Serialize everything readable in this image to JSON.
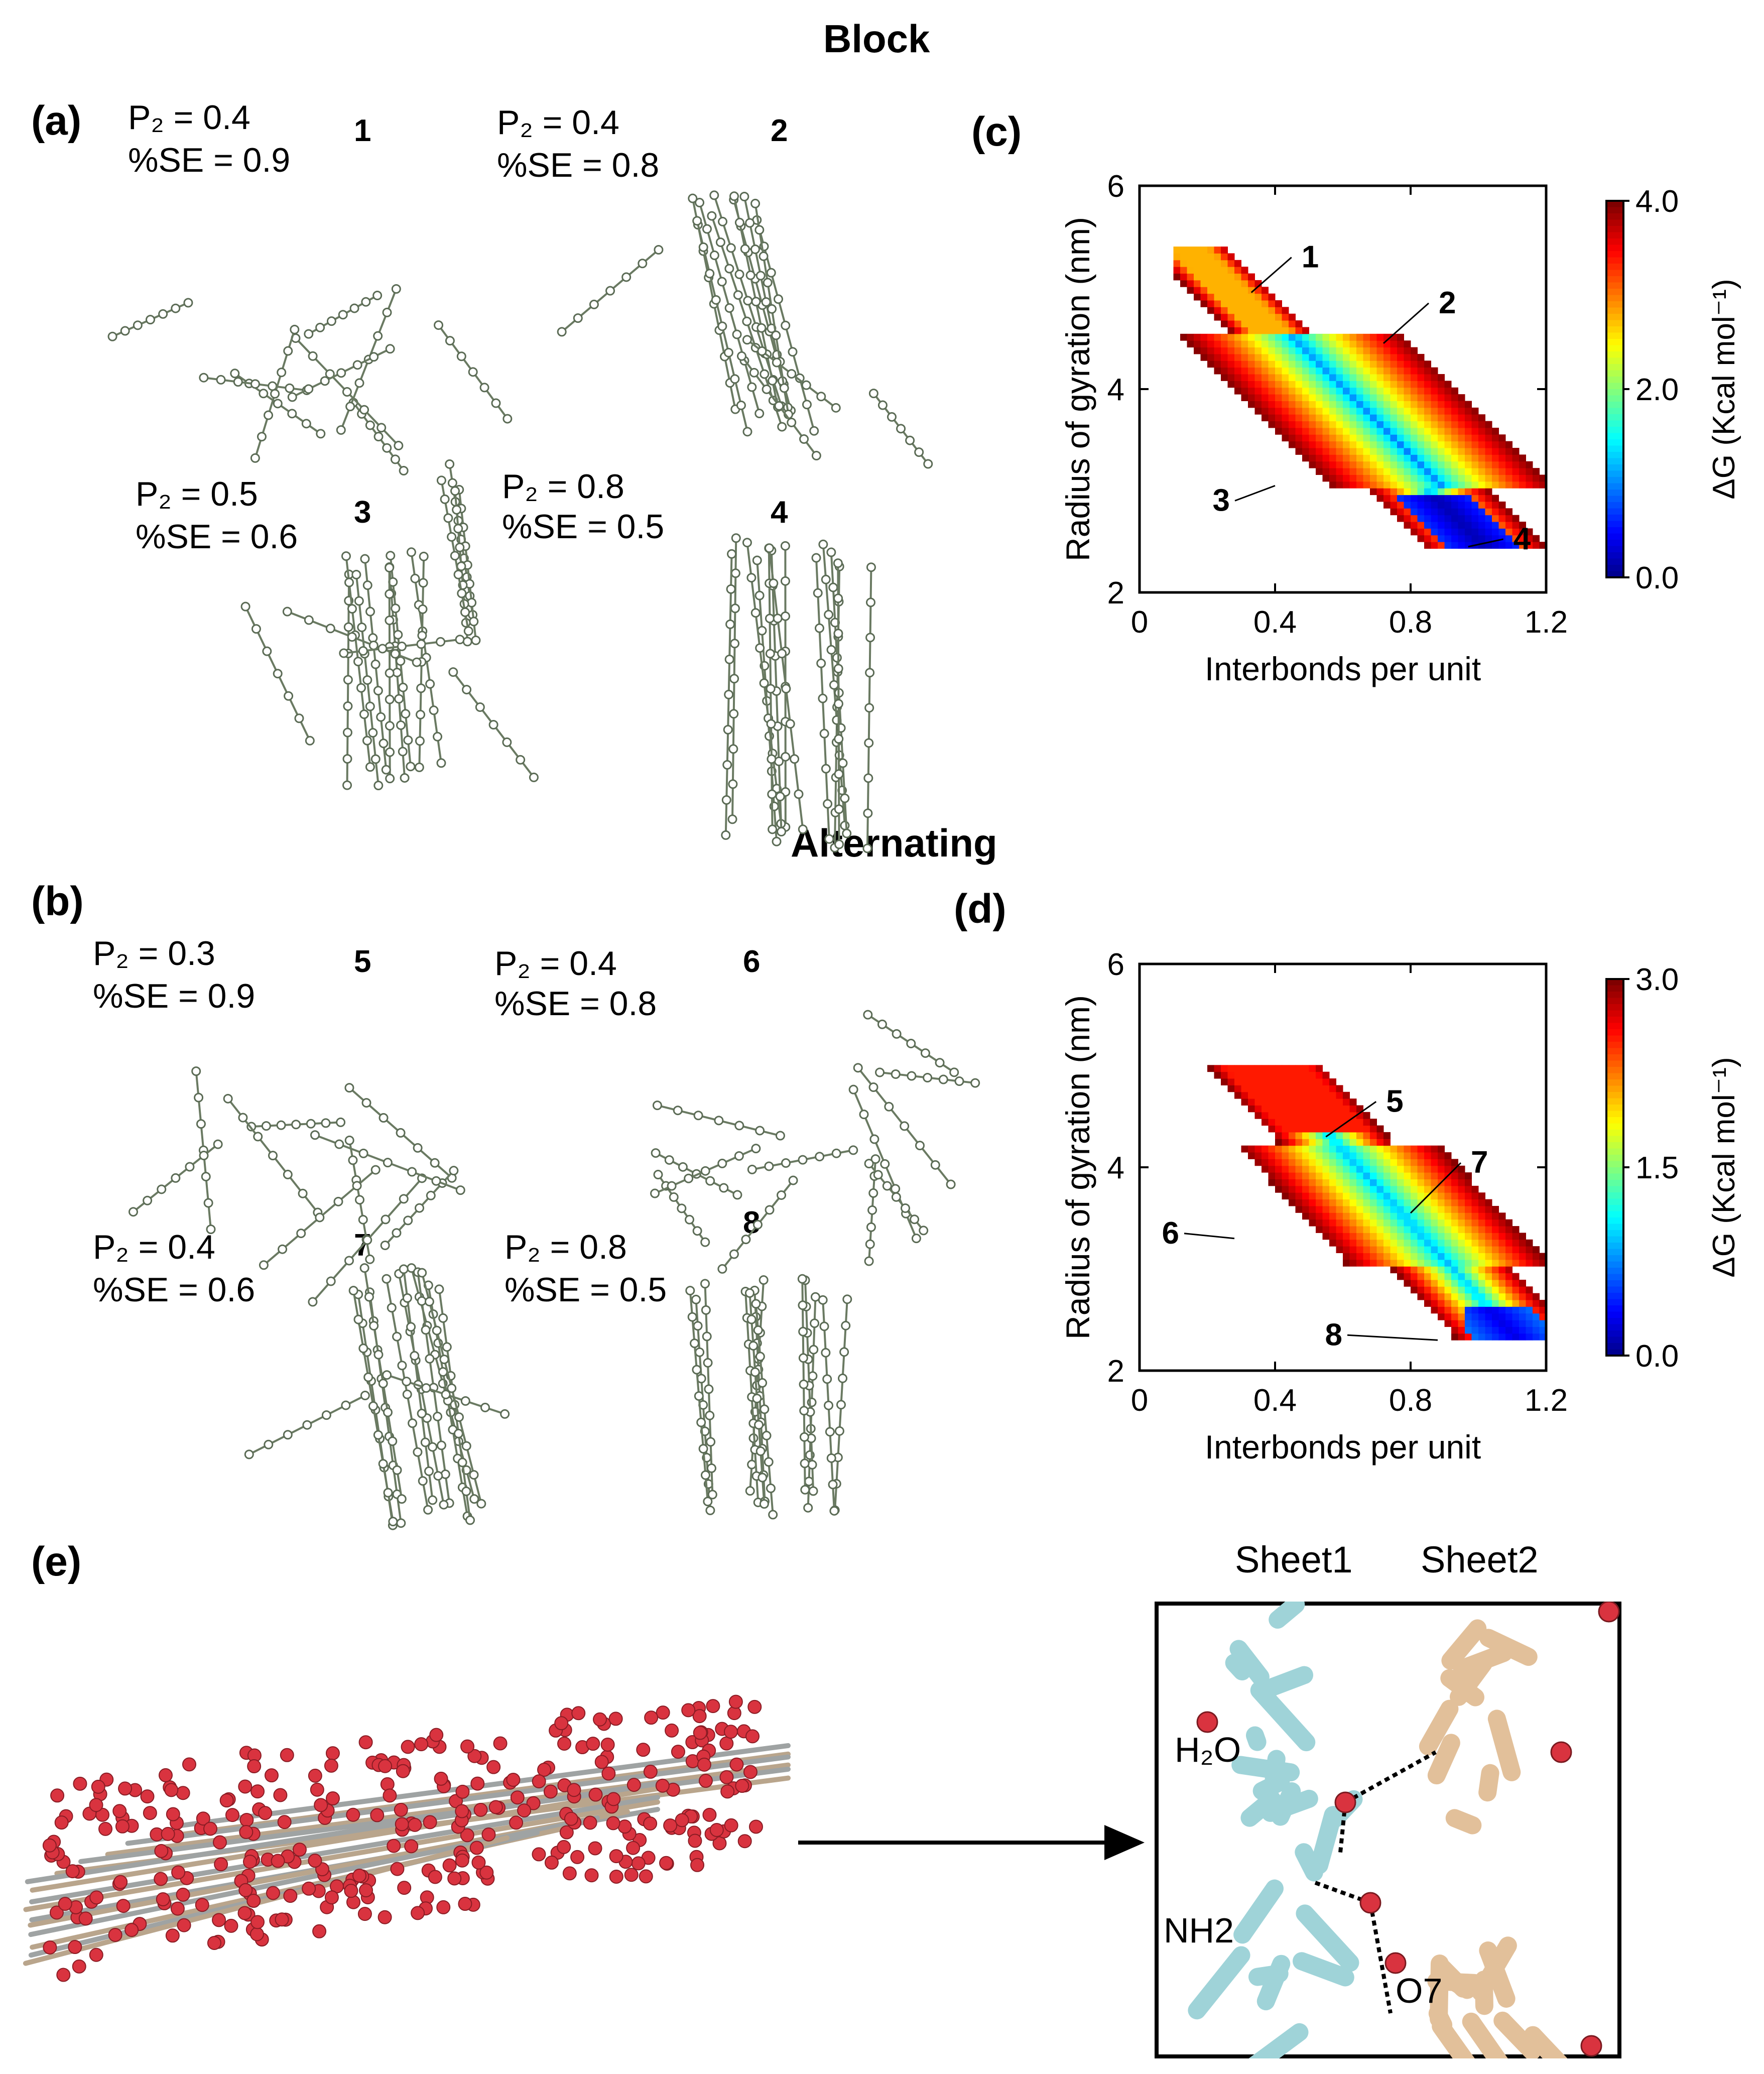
{
  "titles": {
    "block": "Block",
    "alternating": "Alternating"
  },
  "panel_labels": {
    "a": "(a)",
    "b": "(b)",
    "c": "(c)",
    "d": "(d)",
    "e": "(e)"
  },
  "snapshots": [
    {
      "id": "1",
      "p2": "P₂ = 0.4",
      "se": "%SE = 0.9"
    },
    {
      "id": "2",
      "p2": "P₂ = 0.4",
      "se": "%SE = 0.8"
    },
    {
      "id": "3",
      "p2": "P₂ = 0.5",
      "se": "%SE = 0.6"
    },
    {
      "id": "4",
      "p2": "P₂ = 0.8",
      "se": "%SE = 0.5"
    },
    {
      "id": "5",
      "p2": "P₂ = 0.3",
      "se": "%SE = 0.9"
    },
    {
      "id": "6",
      "p2": "P₂ = 0.4",
      "se": "%SE = 0.8"
    },
    {
      "id": "7",
      "p2": "P₂ = 0.4",
      "se": "%SE = 0.6"
    },
    {
      "id": "8",
      "p2": "P₂ = 0.8",
      "se": "%SE = 0.5"
    }
  ],
  "chart_data": [
    {
      "type": "heatmap",
      "panel": "(c)",
      "xlabel": "Interbonds per unit",
      "ylabel": "Radius of gyration (nm)",
      "xlim": [
        0,
        1.2
      ],
      "ylim": [
        2,
        6
      ],
      "xticks": [
        "0",
        "0.4",
        "0.8",
        "1.2"
      ],
      "yticks": [
        "2",
        "4",
        "6"
      ],
      "colorbar": {
        "label": "ΔG (Kcal mol⁻¹)",
        "ticks": [
          "0.0",
          "2.0",
          "4.0"
        ],
        "range": [
          0,
          4.0
        ]
      },
      "annotations": [
        {
          "label": "1",
          "x": 0.33,
          "y": 4.95
        },
        {
          "label": "2",
          "x": 0.72,
          "y": 4.45
        },
        {
          "label": "3",
          "x": 0.4,
          "y": 3.05
        },
        {
          "label": "4",
          "x": 0.97,
          "y": 2.45
        }
      ],
      "colors": [
        "#00007f",
        "#0000ff",
        "#007fff",
        "#00ffff",
        "#7fff7f",
        "#ffff00",
        "#ff7f00",
        "#ff0000",
        "#7f0000"
      ]
    },
    {
      "type": "heatmap",
      "panel": "(d)",
      "xlabel": "Interbonds per unit",
      "ylabel": "Radius of gyration (nm)",
      "xlim": [
        0,
        1.2
      ],
      "ylim": [
        2,
        6
      ],
      "xticks": [
        "0",
        "0.4",
        "0.8",
        "1.2"
      ],
      "yticks": [
        "2",
        "4",
        "6"
      ],
      "colorbar": {
        "label": "ΔG (Kcal mol⁻¹)",
        "ticks": [
          "0.0",
          "1.5",
          "3.0"
        ],
        "range": [
          0,
          3.0
        ]
      },
      "annotations": [
        {
          "label": "5",
          "x": 0.55,
          "y": 4.3
        },
        {
          "label": "6",
          "x": 0.28,
          "y": 3.3
        },
        {
          "label": "7",
          "x": 0.8,
          "y": 3.55
        },
        {
          "label": "8",
          "x": 0.88,
          "y": 2.3
        }
      ],
      "colors": [
        "#00007f",
        "#0000ff",
        "#007fff",
        "#00ffff",
        "#7fff7f",
        "#ffff00",
        "#ff7f00",
        "#ff0000",
        "#7f0000"
      ]
    }
  ],
  "panel_e": {
    "sheet1": "Sheet1",
    "sheet2": "Sheet2",
    "water": "H₂O",
    "nh2": "NH2",
    "o7": "O7"
  }
}
